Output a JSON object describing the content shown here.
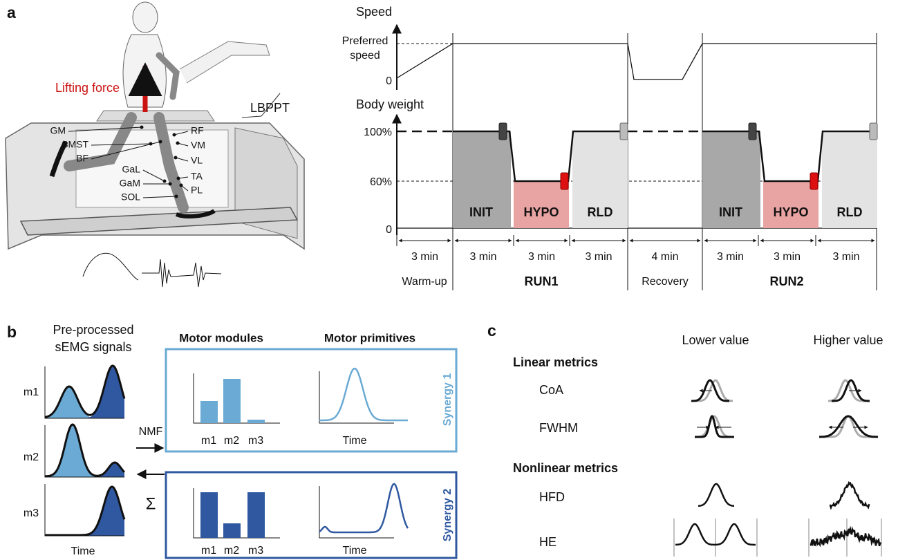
{
  "panel_a": {
    "label": "a",
    "lifting_force": "Lifting force",
    "device": "LBPPT",
    "muscles": [
      "GM",
      "SMST",
      "BF",
      "GaL",
      "GaM",
      "SOL",
      "RF",
      "VM",
      "VL",
      "TA",
      "PL"
    ],
    "speed_title": "Speed",
    "preferred_speed": [
      "Preferred",
      "speed"
    ],
    "speed_zero": "0",
    "weight_title": "Body weight",
    "weight_ticks": [
      "100%",
      "60%",
      "0"
    ],
    "phases": [
      "INIT",
      "HYPO",
      "RLD",
      "INIT",
      "HYPO",
      "RLD"
    ],
    "durations": [
      "3 min",
      "3 min",
      "3 min",
      "3 min",
      "4 min",
      "3 min",
      "3 min",
      "3 min"
    ],
    "periods": [
      "Warm-up",
      "RUN1",
      "Recovery",
      "RUN2"
    ]
  },
  "panel_b": {
    "label": "b",
    "signals_title": [
      "Pre-processed",
      "sEMG signals"
    ],
    "muscles": [
      "m1",
      "m2",
      "m3"
    ],
    "time": "Time",
    "nmf": "NMF",
    "sum": "Σ",
    "modules_title": "Motor modules",
    "primitives_title": "Motor primitives",
    "synergies": [
      {
        "name": "Synergy 1",
        "module_labels": [
          "m1",
          "m2",
          "m3"
        ],
        "time": "Time"
      },
      {
        "name": "Synergy 2",
        "module_labels": [
          "m1",
          "m2",
          "m3"
        ],
        "time": "Time"
      }
    ]
  },
  "panel_c": {
    "label": "c",
    "columns": [
      "Lower value",
      "Higher value"
    ],
    "groups": [
      {
        "title": "Linear metrics",
        "metrics": [
          "CoA",
          "FWHM"
        ]
      },
      {
        "title": "Nonlinear metrics",
        "metrics": [
          "HFD",
          "HE"
        ]
      }
    ]
  }
}
